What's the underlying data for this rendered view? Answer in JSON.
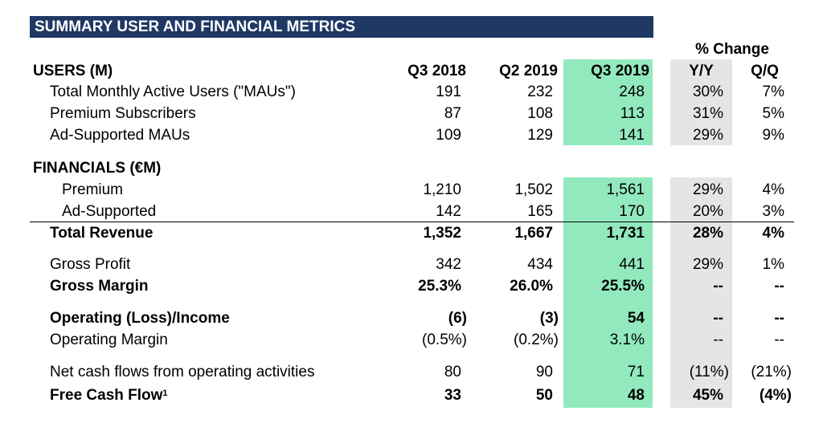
{
  "title": "SUMMARY USER AND FINANCIAL METRICS",
  "pct_change_label": "% Change",
  "columns": [
    "Q3 2018",
    "Q2 2019",
    "Q3 2019",
    "Y/Y",
    "Q/Q"
  ],
  "users_header": "USERS (M)",
  "users_rows": [
    {
      "label": "Total Monthly Active Users (\"MAUs\")",
      "values": [
        "191",
        "232",
        "248",
        "30%",
        "7%"
      ]
    },
    {
      "label": "Premium Subscribers",
      "values": [
        "87",
        "108",
        "113",
        "31%",
        "5%"
      ]
    },
    {
      "label": "Ad-Supported MAUs",
      "values": [
        "109",
        "129",
        "141",
        "29%",
        "9%"
      ]
    }
  ],
  "financials_header": "FINANCIALS (€M)",
  "fin_rows": [
    {
      "label": "Premium",
      "values": [
        "1,210",
        "1,502",
        "1,561",
        "29%",
        "4%"
      ]
    },
    {
      "label": "Ad-Supported",
      "values": [
        "142",
        "165",
        "170",
        "20%",
        "3%"
      ]
    },
    {
      "label": "Total Revenue",
      "values": [
        "1,352",
        "1,667",
        "1,731",
        "28%",
        "4%"
      ]
    },
    {
      "label": "Gross Profit",
      "values": [
        "342",
        "434",
        "441",
        "29%",
        "1%"
      ]
    },
    {
      "label": "Gross Margin",
      "values": [
        "25.3%",
        "26.0%",
        "25.5%",
        "--",
        "--"
      ]
    },
    {
      "label": "Operating (Loss)/Income",
      "values": [
        "(6)",
        "(3)",
        "54",
        "--",
        "--"
      ]
    },
    {
      "label": "Operating Margin",
      "values": [
        "(0.5%)",
        "(0.2%)",
        "3.1%",
        "--",
        "--"
      ]
    },
    {
      "label": "Net cash flows from operating activities",
      "values": [
        "80",
        "90",
        "71",
        "(11%)",
        "(21%)"
      ]
    },
    {
      "label": "Free Cash Flow",
      "footnote": "1",
      "values": [
        "33",
        "50",
        "48",
        "45%",
        "(4%)"
      ]
    }
  ],
  "colors": {
    "title_bg": "#1f3864",
    "current_quarter_bg": "#92e9be",
    "yy_bg": "#e5e5e5"
  }
}
